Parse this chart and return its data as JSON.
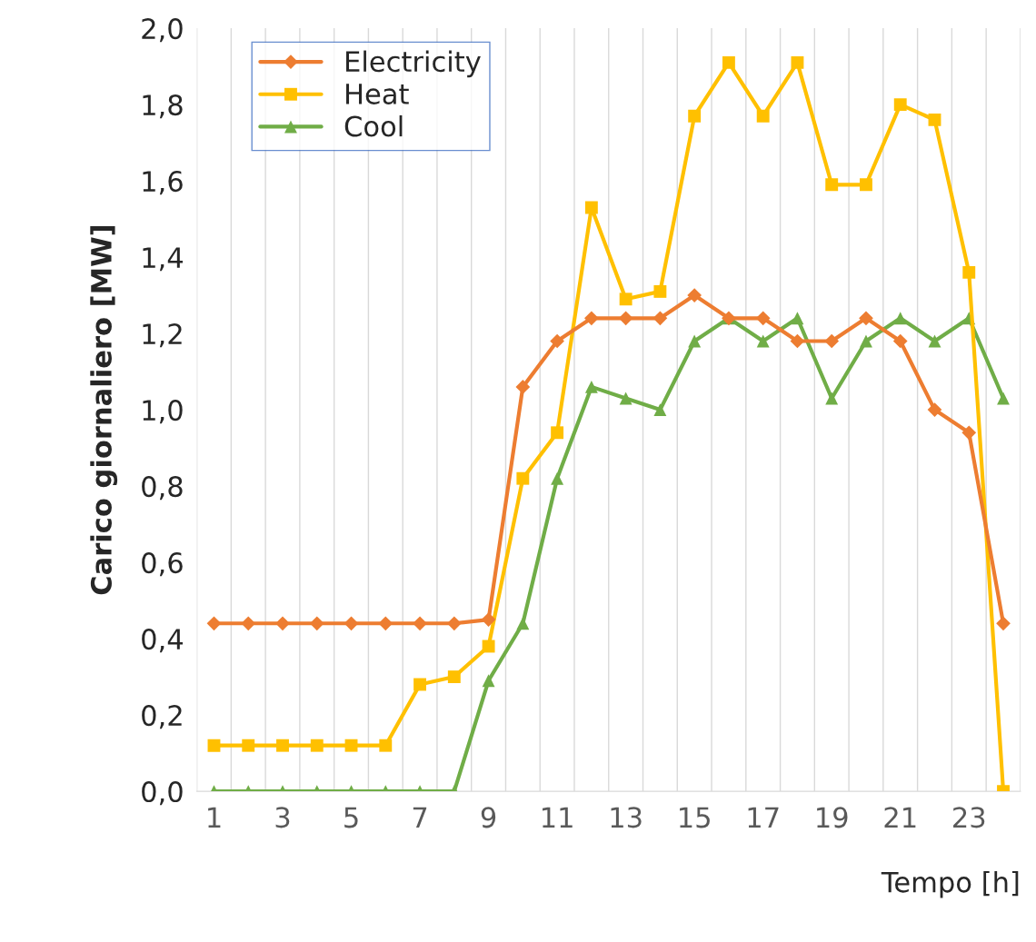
{
  "chart_data": {
    "type": "line",
    "xlabel": "Tempo [h]",
    "ylabel": "Carico giornaliero [MW]",
    "categories": [
      "1",
      null,
      "3",
      null,
      "5",
      null,
      "7",
      null,
      "9",
      null,
      "11",
      null,
      "13",
      null,
      "15",
      null,
      "17",
      null,
      "19",
      null,
      "21",
      null,
      "23",
      null
    ],
    "series": [
      {
        "name": "Electricity",
        "color": "#ed7d31",
        "marker": "diamond",
        "values": [
          0.44,
          0.44,
          0.44,
          0.44,
          0.44,
          0.44,
          0.44,
          0.44,
          0.45,
          1.06,
          1.18,
          1.24,
          1.24,
          1.24,
          1.3,
          1.24,
          1.24,
          1.18,
          1.18,
          1.24,
          1.18,
          1.0,
          0.94,
          0.44
        ]
      },
      {
        "name": "Heat",
        "color": "#ffc000",
        "marker": "square",
        "values": [
          0.12,
          0.12,
          0.12,
          0.12,
          0.12,
          0.12,
          0.28,
          0.3,
          0.38,
          0.82,
          0.94,
          1.53,
          1.29,
          1.31,
          1.77,
          1.91,
          1.77,
          1.91,
          1.59,
          1.59,
          1.8,
          1.76,
          1.36,
          0.0
        ]
      },
      {
        "name": "Cool",
        "color": "#70ad47",
        "marker": "triangle",
        "values": [
          0,
          0,
          0,
          0,
          0,
          0,
          0,
          0,
          0.29,
          0.44,
          0.82,
          1.06,
          1.03,
          1.0,
          1.18,
          1.24,
          1.18,
          1.24,
          1.03,
          1.18,
          1.24,
          1.18,
          1.24,
          1.03
        ]
      }
    ],
    "ylim": [
      0,
      2.0
    ],
    "yticks": [
      {
        "value": 0,
        "label": "0,0"
      },
      {
        "value": 0.2,
        "label": "0,2"
      },
      {
        "value": 0.4,
        "label": "0,4"
      },
      {
        "value": 0.6,
        "label": "0,6"
      },
      {
        "value": 0.8,
        "label": "0,8"
      },
      {
        "value": 1.0,
        "label": "1,0"
      },
      {
        "value": 1.2,
        "label": "1,2"
      },
      {
        "value": 1.4,
        "label": "1,4"
      },
      {
        "value": 1.6,
        "label": "1,6"
      },
      {
        "value": 1.8,
        "label": "1,8"
      },
      {
        "value": 2.0,
        "label": "2,0"
      }
    ],
    "grid": "x",
    "legend": "top left",
    "line_style": "solid"
  }
}
